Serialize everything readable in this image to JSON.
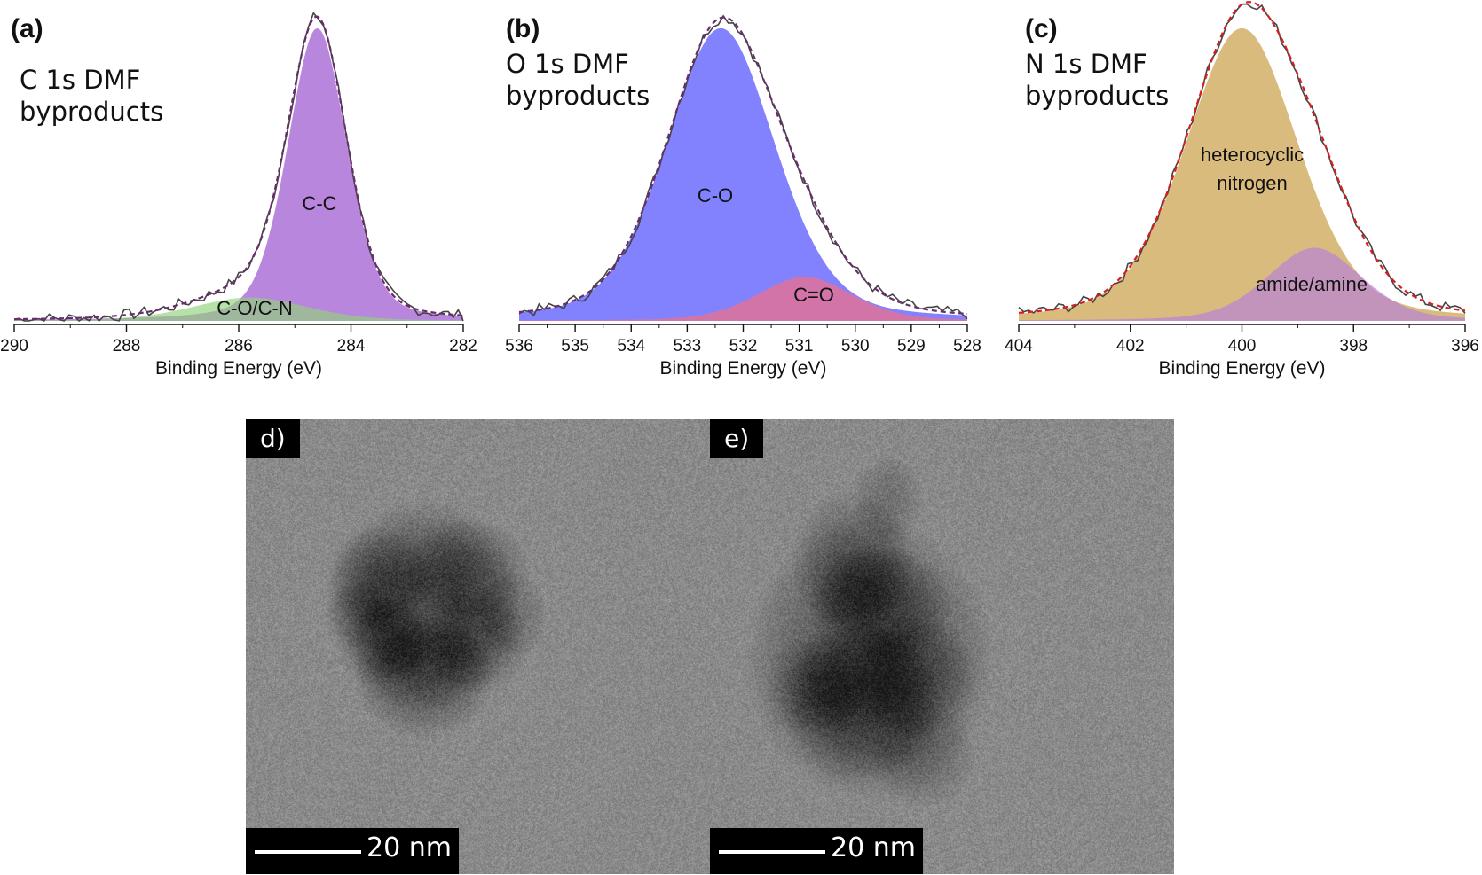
{
  "chart_data": [
    {
      "type": "area",
      "panel": "(a)",
      "title": [
        "C 1s DMF",
        "byproducts"
      ],
      "xlabel": "Binding Energy (eV)",
      "xlim": [
        290,
        282
      ],
      "xticks": [
        290,
        288,
        286,
        284,
        282
      ],
      "xtick_labels": [
        "290",
        "288",
        "286",
        "284",
        "282"
      ],
      "series": [
        {
          "name": "C-C",
          "center": 284.6,
          "height": 100,
          "fwhm": 1.25,
          "color": "#b57fdc"
        },
        {
          "name": "C-O/C-N",
          "center": 285.8,
          "height": 8,
          "fwhm": 2.4,
          "color": "#8fd17a"
        }
      ],
      "envelope_color": "#6a2c6e"
    },
    {
      "type": "area",
      "panel": "(b)",
      "title": [
        "O 1s DMF",
        "byproducts"
      ],
      "xlabel": "Binding Energy (eV)",
      "xlim": [
        536,
        528
      ],
      "xticks": [
        536,
        535,
        534,
        533,
        532,
        531,
        530,
        529,
        528
      ],
      "xtick_labels": [
        "536",
        "535",
        "534",
        "533",
        "532",
        "531",
        "530",
        "529",
        "528"
      ],
      "series": [
        {
          "name": "C-O",
          "center": 532.4,
          "height": 100,
          "fwhm": 2.3,
          "color": "#7b7bff"
        },
        {
          "name": "C=O",
          "center": 530.9,
          "height": 15,
          "fwhm": 2.0,
          "color": "#ff6d7a"
        }
      ],
      "envelope_color": "#6a2c6e"
    },
    {
      "type": "area",
      "panel": "(c)",
      "title": [
        "N 1s DMF",
        "byproducts"
      ],
      "xlabel": "Binding Energy (eV)",
      "xlim": [
        404,
        396
      ],
      "xticks": [
        404,
        402,
        400,
        398,
        396
      ],
      "xtick_labels": [
        "404",
        "402",
        "400",
        "398",
        "396"
      ],
      "series": [
        {
          "name": "heterocyclic nitrogen",
          "center": 400.0,
          "height": 100,
          "fwhm": 2.4,
          "color": "#d8b777"
        },
        {
          "name": "amide/amine",
          "center": 398.7,
          "height": 25,
          "fwhm": 2.0,
          "color": "#b57fdc"
        }
      ],
      "envelope_color": "#d42020"
    }
  ],
  "labels": {
    "a_cc": "C-C",
    "a_co": "C-O/C-N",
    "b_co": "C-O",
    "b_ceo": "C=O",
    "c_het1": "heterocyclic",
    "c_het2": "nitrogen",
    "c_amide": "amide/amine"
  },
  "tem": {
    "d": {
      "label": "d)",
      "scale_text": "20 nm"
    },
    "e": {
      "label": "e)",
      "scale_text": "20 nm"
    }
  }
}
